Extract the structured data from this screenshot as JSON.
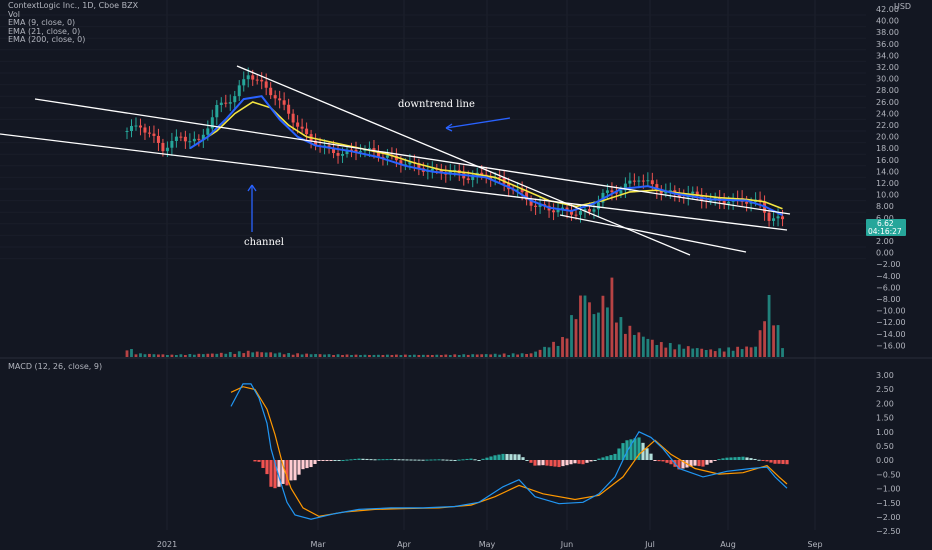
{
  "legend": {
    "title": "ContextLogic Inc., 1D, Cboe BZX",
    "vol": "Vol",
    "ema9": "EMA (9, close, 0)",
    "ema21": "EMA (21, close, 0)",
    "ema200": "EMA (200, close, 0)",
    "macd": "MACD (12, 26, close, 9)"
  },
  "currency_label": "USD",
  "current_price": {
    "price": "6.62",
    "countdown": "04:16:27",
    "color": "#26a69a"
  },
  "annotations": {
    "downtrend": "downtrend line",
    "channel": "channel"
  },
  "colors": {
    "up": "#26a69a",
    "down": "#ef5350",
    "ema9": "#2962ff",
    "ema21": "#f5e642",
    "macd_line": "#2196f3",
    "signal_line": "#ff9800",
    "hist_up_strong": "#26a69a",
    "hist_up_weak": "#b2dfdb",
    "hist_down_strong": "#ef5350",
    "hist_down_weak": "#ffcdd2"
  },
  "chart_data": {
    "type": "candlestick",
    "price_axis": {
      "ticks": [
        "42.00",
        "40.00",
        "38.00",
        "36.00",
        "34.00",
        "32.00",
        "30.00",
        "28.00",
        "26.00",
        "24.00",
        "22.00",
        "20.00",
        "18.00",
        "16.00",
        "14.00",
        "12.00",
        "10.00",
        "8.00",
        "6.00",
        "4.00",
        "2.00",
        "0.00",
        "−2.00",
        "−4.00",
        "−6.00",
        "−8.00",
        "−10.00",
        "−12.00",
        "−14.00",
        "−16.00"
      ]
    },
    "macd_axis": {
      "ticks": [
        "3.00",
        "2.50",
        "2.00",
        "1.50",
        "1.00",
        "0.50",
        "0.00",
        "−0.50",
        "−1.00",
        "−1.50",
        "−2.00",
        "−2.50"
      ]
    },
    "x_labels": [
      "2021",
      "Mar",
      "Apr",
      "May",
      "Jun",
      "Jul",
      "Aug",
      "Sep"
    ],
    "close_keypoints": [
      [
        0,
        22
      ],
      [
        3,
        23
      ],
      [
        8,
        19
      ],
      [
        12,
        21
      ],
      [
        16,
        20
      ],
      [
        20,
        26
      ],
      [
        24,
        28
      ],
      [
        27,
        32
      ],
      [
        30,
        30
      ],
      [
        33,
        28
      ],
      [
        36,
        25
      ],
      [
        40,
        21
      ],
      [
        44,
        19
      ],
      [
        48,
        18
      ],
      [
        52,
        19
      ],
      [
        56,
        18
      ],
      [
        60,
        17
      ],
      [
        64,
        16
      ],
      [
        68,
        15
      ],
      [
        72,
        15
      ],
      [
        76,
        14
      ],
      [
        80,
        14.5
      ],
      [
        84,
        13
      ],
      [
        88,
        11
      ],
      [
        91,
        9
      ],
      [
        95,
        8.5
      ],
      [
        99,
        8
      ],
      [
        103,
        8
      ],
      [
        106,
        11
      ],
      [
        110,
        12
      ],
      [
        114,
        14
      ],
      [
        118,
        12
      ],
      [
        122,
        11
      ],
      [
        126,
        11
      ],
      [
        130,
        10
      ],
      [
        134,
        10
      ],
      [
        138,
        10
      ],
      [
        141,
        9.5
      ],
      [
        143,
        7
      ],
      [
        146,
        6.6
      ]
    ],
    "ema9_keypoints": [
      [
        14,
        19
      ],
      [
        18,
        21
      ],
      [
        22,
        24
      ],
      [
        26,
        27.5
      ],
      [
        30,
        28
      ],
      [
        34,
        24
      ],
      [
        38,
        21
      ],
      [
        42,
        19.5
      ],
      [
        46,
        19
      ],
      [
        50,
        18.5
      ],
      [
        56,
        17.5
      ],
      [
        62,
        16
      ],
      [
        68,
        15
      ],
      [
        74,
        14.5
      ],
      [
        80,
        14
      ],
      [
        86,
        12
      ],
      [
        90,
        10
      ],
      [
        94,
        8.8
      ],
      [
        99,
        8.2
      ],
      [
        104,
        9.5
      ],
      [
        110,
        12
      ],
      [
        116,
        12.5
      ],
      [
        122,
        11.2
      ],
      [
        130,
        10.2
      ],
      [
        138,
        10
      ],
      [
        142,
        9
      ],
      [
        146,
        7.5
      ]
    ],
    "ema21_keypoints": [
      [
        16,
        20
      ],
      [
        20,
        22
      ],
      [
        24,
        25
      ],
      [
        28,
        27
      ],
      [
        32,
        26
      ],
      [
        36,
        23
      ],
      [
        40,
        21
      ],
      [
        46,
        20
      ],
      [
        52,
        19
      ],
      [
        58,
        18
      ],
      [
        64,
        16.5
      ],
      [
        70,
        15.3
      ],
      [
        76,
        14.8
      ],
      [
        82,
        14
      ],
      [
        88,
        12
      ],
      [
        94,
        10
      ],
      [
        100,
        9
      ],
      [
        106,
        10
      ],
      [
        112,
        11.5
      ],
      [
        118,
        11.8
      ],
      [
        124,
        11.2
      ],
      [
        132,
        10.5
      ],
      [
        138,
        10.2
      ],
      [
        142,
        9.8
      ],
      [
        146,
        8.6
      ]
    ],
    "volume_keypoints": [
      [
        0,
        0.15
      ],
      [
        2,
        0.05
      ],
      [
        10,
        0.03
      ],
      [
        20,
        0.05
      ],
      [
        27,
        0.08
      ],
      [
        36,
        0.05
      ],
      [
        50,
        0.03
      ],
      [
        70,
        0.03
      ],
      [
        90,
        0.05
      ],
      [
        97,
        0.25
      ],
      [
        102,
        0.95
      ],
      [
        104,
        0.6
      ],
      [
        106,
        0.8
      ],
      [
        108,
        1.0
      ],
      [
        110,
        0.5
      ],
      [
        112,
        0.4
      ],
      [
        118,
        0.2
      ],
      [
        124,
        0.15
      ],
      [
        130,
        0.1
      ],
      [
        140,
        0.15
      ],
      [
        143,
        0.8
      ],
      [
        146,
        0.2
      ]
    ],
    "macd_keypoints": [
      [
        0,
        1.9
      ],
      [
        3,
        2.7
      ],
      [
        5,
        2.7
      ],
      [
        7,
        2.2
      ],
      [
        9,
        1.3
      ],
      [
        10,
        0.4
      ],
      [
        12,
        -0.6
      ],
      [
        14,
        -1.5
      ],
      [
        16,
        -1.95
      ],
      [
        20,
        -2.1
      ],
      [
        26,
        -1.9
      ],
      [
        32,
        -1.75
      ],
      [
        40,
        -1.7
      ],
      [
        48,
        -1.7
      ],
      [
        56,
        -1.65
      ],
      [
        62,
        -1.5
      ],
      [
        68,
        -0.95
      ],
      [
        72,
        -0.7
      ],
      [
        76,
        -1.3
      ],
      [
        82,
        -1.55
      ],
      [
        88,
        -1.5
      ],
      [
        92,
        -1.2
      ],
      [
        96,
        -0.6
      ],
      [
        99,
        0.3
      ],
      [
        102,
        1.0
      ],
      [
        105,
        0.8
      ],
      [
        108,
        0.4
      ],
      [
        112,
        -0.3
      ],
      [
        118,
        -0.6
      ],
      [
        124,
        -0.4
      ],
      [
        130,
        -0.3
      ],
      [
        134,
        -0.25
      ],
      [
        136,
        -0.6
      ],
      [
        139,
        -1.0
      ]
    ],
    "signal_keypoints": [
      [
        0,
        2.4
      ],
      [
        3,
        2.6
      ],
      [
        6,
        2.5
      ],
      [
        9,
        1.8
      ],
      [
        11,
        0.9
      ],
      [
        13,
        -0.2
      ],
      [
        15,
        -1.0
      ],
      [
        18,
        -1.7
      ],
      [
        22,
        -2.0
      ],
      [
        28,
        -1.85
      ],
      [
        36,
        -1.75
      ],
      [
        44,
        -1.72
      ],
      [
        52,
        -1.7
      ],
      [
        60,
        -1.6
      ],
      [
        66,
        -1.3
      ],
      [
        72,
        -0.9
      ],
      [
        78,
        -1.2
      ],
      [
        86,
        -1.4
      ],
      [
        92,
        -1.25
      ],
      [
        98,
        -0.6
      ],
      [
        102,
        0.2
      ],
      [
        106,
        0.7
      ],
      [
        110,
        0.2
      ],
      [
        116,
        -0.3
      ],
      [
        122,
        -0.5
      ],
      [
        128,
        -0.45
      ],
      [
        134,
        -0.2
      ],
      [
        137,
        -0.6
      ],
      [
        139,
        -0.85
      ]
    ]
  }
}
